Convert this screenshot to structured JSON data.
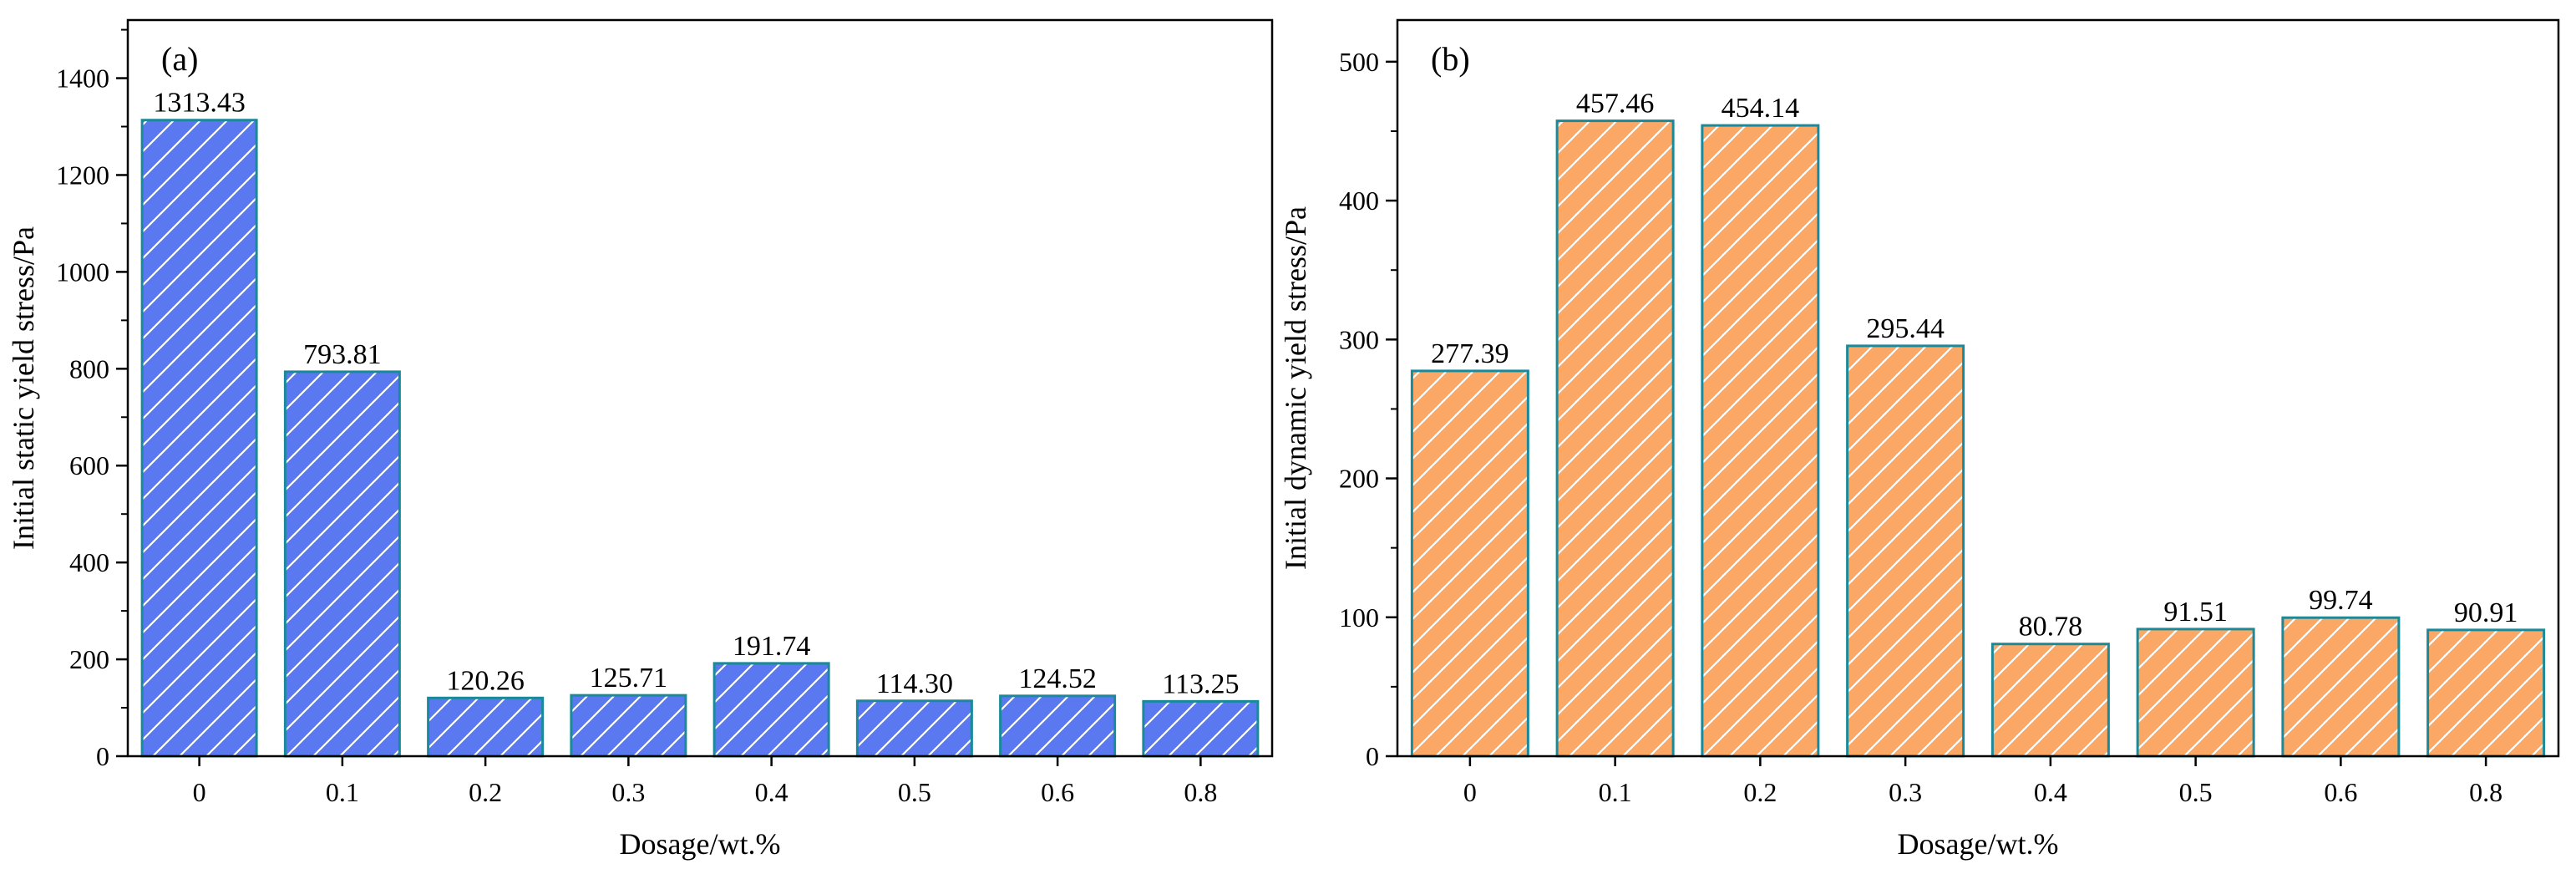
{
  "chart_data": [
    {
      "type": "bar",
      "panel_label": "(a)",
      "categories": [
        "0",
        "0.1",
        "0.2",
        "0.3",
        "0.4",
        "0.5",
        "0.6",
        "0.8"
      ],
      "values": [
        1313.43,
        793.81,
        120.26,
        125.71,
        191.74,
        114.3,
        124.52,
        113.25
      ],
      "value_labels": [
        "1313.43",
        "793.81",
        "120.26",
        "125.71",
        "191.74",
        "114.30",
        "124.52",
        "113.25"
      ],
      "xlabel": "Dosage/wt.%",
      "ylabel": "Initial static yield stress/Pa",
      "ylim": [
        0,
        1520
      ],
      "yticks": [
        0,
        200,
        400,
        600,
        800,
        1000,
        1200,
        1400
      ],
      "bar_fill": "#5a78f0",
      "bar_edge": "#1a8a9a",
      "hatch": "white diagonal",
      "grid": false
    },
    {
      "type": "bar",
      "panel_label": "(b)",
      "categories": [
        "0",
        "0.1",
        "0.2",
        "0.3",
        "0.4",
        "0.5",
        "0.6",
        "0.8"
      ],
      "values": [
        277.39,
        457.46,
        454.14,
        295.44,
        80.78,
        91.51,
        99.74,
        90.91
      ],
      "value_labels": [
        "277.39",
        "457.46",
        "454.14",
        "295.44",
        "80.78",
        "91.51",
        "99.74",
        "90.91"
      ],
      "xlabel": "Dosage/wt.%",
      "ylabel": "Initial dynamic yield stress/Pa",
      "ylim": [
        0,
        530
      ],
      "yticks": [
        0,
        100,
        200,
        300,
        400,
        500
      ],
      "bar_fill": "#fba766",
      "bar_edge": "#1a8a9a",
      "hatch": "white diagonal",
      "grid": false
    }
  ]
}
